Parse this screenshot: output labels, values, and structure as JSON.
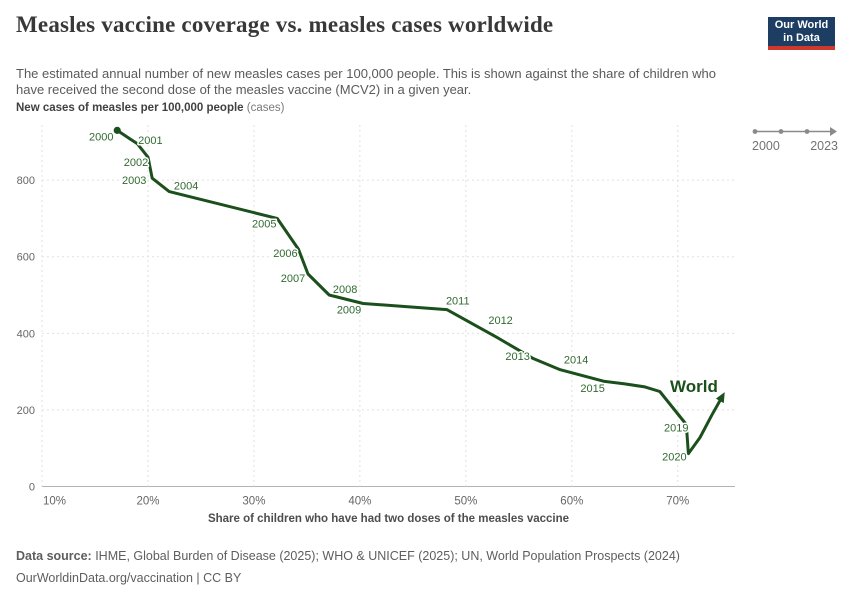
{
  "header": {
    "title": "Measles vaccine coverage vs. measles cases worldwide",
    "subtitle": "The estimated annual number of new measles cases per 100,000 people. This is shown against the share of children who have received the second dose of the measles vaccine (MCV2) in a given year.",
    "logo": {
      "line1": "Our World",
      "line2": "in Data",
      "bg_color": "#1d3d63",
      "accent_color": "#d0382e"
    }
  },
  "timeline": {
    "start": "2000",
    "end": "2023",
    "track_color": "#8a8a8a"
  },
  "chart_data": {
    "type": "line",
    "subtype": "connected-scatter",
    "y_axis_title_bold": "New cases of measles per 100,000 people",
    "y_axis_title_light": "(cases)",
    "xlabel": "Share of children who have had two doses of the measles vaccine",
    "x_ticks": [
      {
        "value": 10,
        "label": "10%"
      },
      {
        "value": 20,
        "label": "20%"
      },
      {
        "value": 30,
        "label": "30%"
      },
      {
        "value": 40,
        "label": "40%"
      },
      {
        "value": 50,
        "label": "50%"
      },
      {
        "value": 60,
        "label": "60%"
      },
      {
        "value": 70,
        "label": "70%"
      }
    ],
    "y_ticks": [
      0,
      200,
      400,
      600,
      800
    ],
    "xlim": [
      10,
      75.4
    ],
    "ylim": [
      0,
      944
    ],
    "grid": true,
    "line_color": "#1b4f1b",
    "year_label_color": "#316a31",
    "grid_color": "#e0e0e0",
    "zero_line_color": "#b3b3b3",
    "tick_label_color": "#666666",
    "entity_label": "World",
    "labeled_years": [
      2000,
      2001,
      2002,
      2003,
      2004,
      2005,
      2006,
      2007,
      2008,
      2009,
      2011,
      2012,
      2013,
      2014,
      2015,
      2019,
      2020
    ],
    "series": [
      {
        "name": "World",
        "points": [
          {
            "year": 2000,
            "coverage_pct": 17.1,
            "cases": 930
          },
          {
            "year": 2001,
            "coverage_pct": 19.0,
            "cases": 895
          },
          {
            "year": 2002,
            "coverage_pct": 20.0,
            "cases": 860
          },
          {
            "year": 2003,
            "coverage_pct": 20.4,
            "cases": 805
          },
          {
            "year": 2004,
            "coverage_pct": 22.0,
            "cases": 770
          },
          {
            "year": 2005,
            "coverage_pct": 32.2,
            "cases": 700
          },
          {
            "year": 2006,
            "coverage_pct": 34.2,
            "cases": 620
          },
          {
            "year": 2007,
            "coverage_pct": 35.1,
            "cases": 555
          },
          {
            "year": 2008,
            "coverage_pct": 37.1,
            "cases": 500
          },
          {
            "year": 2009,
            "coverage_pct": 40.3,
            "cases": 478
          },
          {
            "year": 2010,
            "coverage_pct": 44.2,
            "cases": 470
          },
          {
            "year": 2011,
            "coverage_pct": 48.2,
            "cases": 462
          },
          {
            "year": 2012,
            "coverage_pct": 52.9,
            "cases": 390
          },
          {
            "year": 2013,
            "coverage_pct": 56.3,
            "cases": 335
          },
          {
            "year": 2014,
            "coverage_pct": 58.9,
            "cases": 305
          },
          {
            "year": 2015,
            "coverage_pct": 63.0,
            "cases": 275
          },
          {
            "year": 2016,
            "coverage_pct": 65.0,
            "cases": 268
          },
          {
            "year": 2017,
            "coverage_pct": 66.9,
            "cases": 260
          },
          {
            "year": 2018,
            "coverage_pct": 68.3,
            "cases": 248
          },
          {
            "year": 2019,
            "coverage_pct": 70.8,
            "cases": 162
          },
          {
            "year": 2020,
            "coverage_pct": 71.0,
            "cases": 86
          },
          {
            "year": 2021,
            "coverage_pct": 72.1,
            "cases": 128
          },
          {
            "year": 2022,
            "coverage_pct": 73.2,
            "cases": 186
          },
          {
            "year": 2023,
            "coverage_pct": 74.2,
            "cases": 235
          }
        ]
      }
    ]
  },
  "footer": {
    "source_label": "Data source:",
    "source_text": " IHME, Global Burden of Disease (2025); WHO & UNICEF (2025); UN, World Population Prospects (2024)",
    "license_line": "OurWorldinData.org/vaccination | CC BY"
  }
}
